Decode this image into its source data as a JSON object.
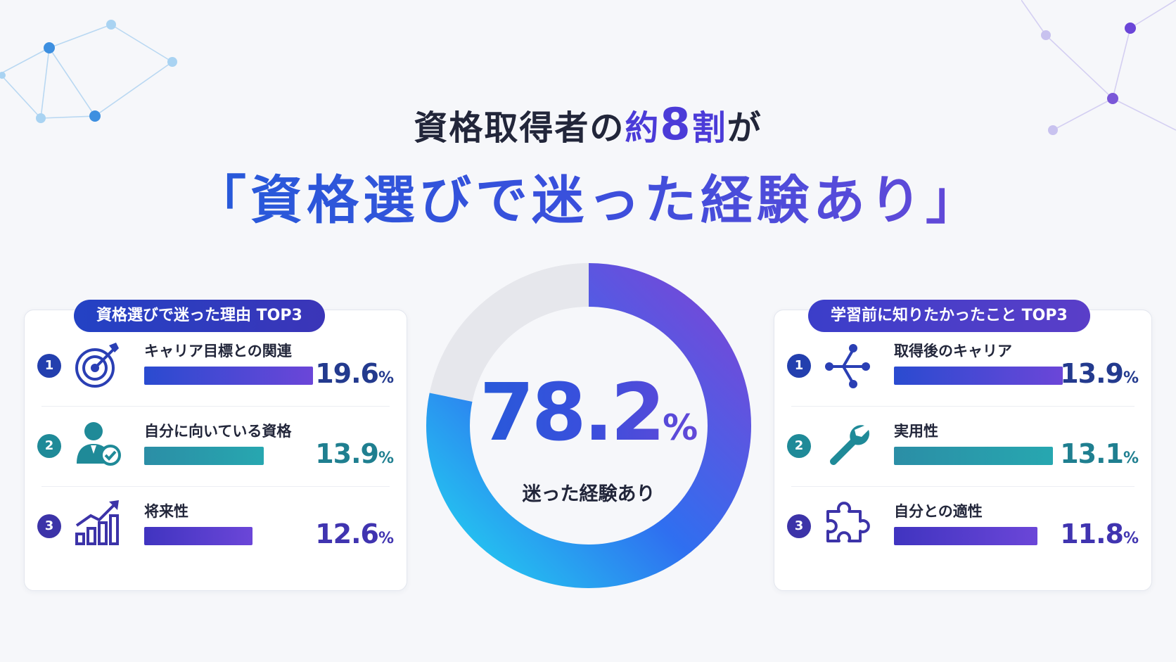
{
  "headline": {
    "line1_prefix": "資格取得者の",
    "line1_hl_a": "約",
    "line1_hl_num": "8",
    "line1_hl_b": "割",
    "line1_suffix": "が",
    "line2": "「資格選びで迷った経験あり」"
  },
  "donut": {
    "value_text": "78.2",
    "unit": "%",
    "caption": "迷った経験あり"
  },
  "left_panel": {
    "title": "資格選びで迷った理由 TOP3",
    "items": [
      {
        "rank": "1",
        "label": "キャリア目標との関連",
        "value_text": "19.6",
        "unit": "%",
        "icon": "target-icon"
      },
      {
        "rank": "2",
        "label": "自分に向いている資格",
        "value_text": "13.9",
        "unit": "%",
        "icon": "person-check-icon"
      },
      {
        "rank": "3",
        "label": "将来性",
        "value_text": "12.6",
        "unit": "%",
        "icon": "growth-chart-icon"
      }
    ]
  },
  "right_panel": {
    "title": "学習前に知りたかったこと TOP3",
    "items": [
      {
        "rank": "1",
        "label": "取得後のキャリア",
        "value_text": "13.9",
        "unit": "%",
        "icon": "branch-icon"
      },
      {
        "rank": "2",
        "label": "実用性",
        "value_text": "13.1",
        "unit": "%",
        "icon": "wrench-icon"
      },
      {
        "rank": "3",
        "label": "自分との適性",
        "value_text": "11.8",
        "unit": "%",
        "icon": "puzzle-icon"
      }
    ]
  },
  "colors": {
    "blue": "#1d5fd8",
    "purple": "#7a45d6",
    "teal": "#27a7b0",
    "donut_rest": "#e6e7ec"
  },
  "chart_data": [
    {
      "type": "pie",
      "values": [
        78.2,
        21.8
      ],
      "categories": [
        "迷った経験あり",
        ""
      ],
      "unit": "%"
    },
    {
      "type": "bar",
      "title": "資格選びで迷った理由 TOP3",
      "categories": [
        "キャリア目標との関連",
        "自分に向いている資格",
        "将来性"
      ],
      "values": [
        19.6,
        13.9,
        12.6
      ],
      "unit": "%"
    },
    {
      "type": "bar",
      "title": "学習前に知りたかったこと TOP3",
      "categories": [
        "取得後のキャリア",
        "実用性",
        "自分との適性"
      ],
      "values": [
        13.9,
        13.1,
        11.8
      ],
      "unit": "%"
    }
  ]
}
